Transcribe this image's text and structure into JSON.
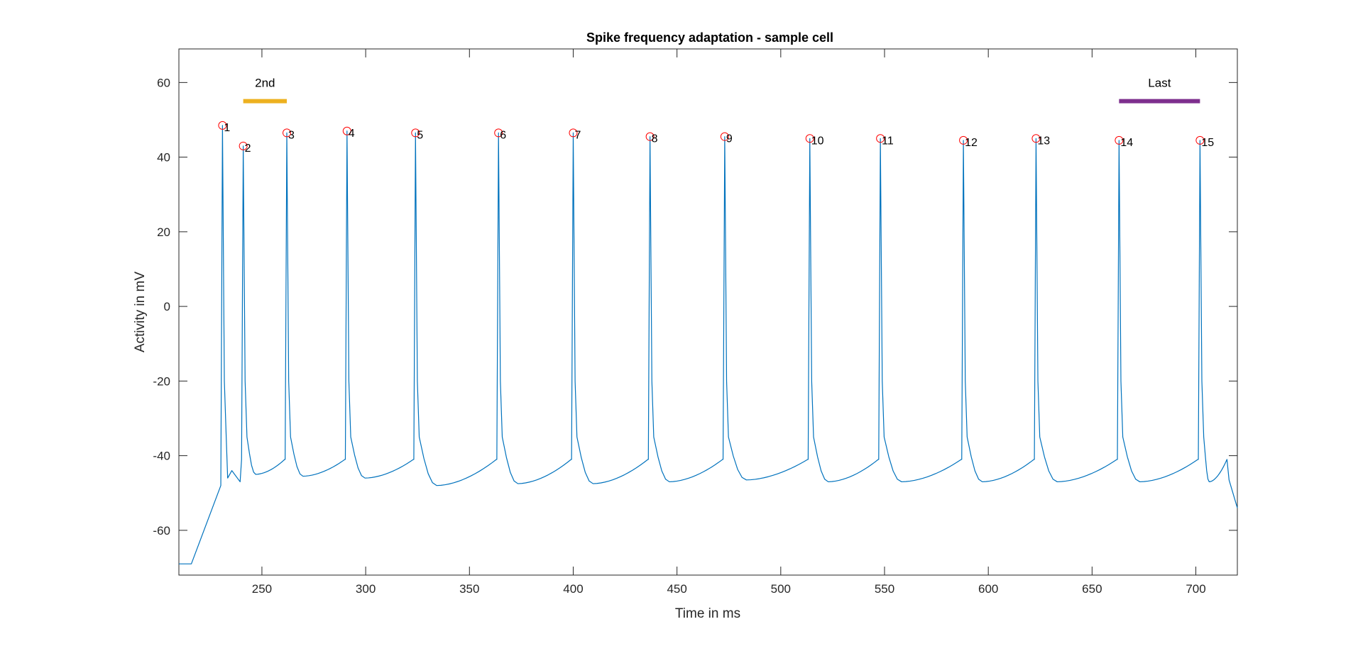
{
  "chart_data": {
    "type": "line",
    "title": "Spike frequency adaptation - sample cell",
    "xlabel": "Time in ms",
    "ylabel": "Activity in mV",
    "xlim": [
      210,
      720
    ],
    "ylim": [
      -72,
      69
    ],
    "xticks": [
      250,
      300,
      350,
      400,
      450,
      500,
      550,
      600,
      650,
      700
    ],
    "yticks": [
      -60,
      -40,
      -20,
      0,
      20,
      40,
      60
    ],
    "grid": false,
    "colors": {
      "trace": "#0072BD",
      "markers": "#FF0000",
      "axes": "#262626"
    },
    "series": [
      {
        "values_description": "membrane potential trace",
        "baseline_start": [
          [
            210,
            -69
          ],
          [
            216,
            -69
          ]
        ],
        "spike_times": [
          231,
          241,
          262,
          291,
          324,
          364,
          400,
          437,
          473,
          514,
          548,
          588,
          623,
          663,
          702
        ],
        "spike_peaks": [
          48.5,
          43,
          46.5,
          47,
          46.5,
          46.5,
          46.5,
          45.5,
          45.5,
          45,
          45,
          44.5,
          45,
          44.5,
          44.5
        ],
        "trough_values": [
          -46,
          -45,
          -45.5,
          -46,
          -48,
          -47.5,
          -47.5,
          -47,
          -46.5,
          -47,
          -47,
          -47,
          -47,
          -47,
          -47
        ],
        "pre_spike_values": [
          -48,
          -41,
          -41,
          -41,
          -41,
          -41,
          -41,
          -41,
          -41,
          -41,
          -41,
          -41,
          -41,
          -41,
          -41
        ],
        "end_values": [
          [
            716,
            -46.5
          ],
          [
            720,
            -54
          ]
        ]
      }
    ],
    "spike_markers": [
      {
        "label": "1",
        "x": 231,
        "y": 48.5
      },
      {
        "label": "2",
        "x": 241,
        "y": 43
      },
      {
        "label": "3",
        "x": 262,
        "y": 46.5
      },
      {
        "label": "4",
        "x": 291,
        "y": 47
      },
      {
        "label": "5",
        "x": 324,
        "y": 46.5
      },
      {
        "label": "6",
        "x": 364,
        "y": 46.5
      },
      {
        "label": "7",
        "x": 400,
        "y": 46.5
      },
      {
        "label": "8",
        "x": 437,
        "y": 45.5
      },
      {
        "label": "9",
        "x": 473,
        "y": 45.5
      },
      {
        "label": "10",
        "x": 514,
        "y": 45
      },
      {
        "label": "11",
        "x": 548,
        "y": 45
      },
      {
        "label": "12",
        "x": 588,
        "y": 44.5
      },
      {
        "label": "13",
        "x": 623,
        "y": 45
      },
      {
        "label": "14",
        "x": 663,
        "y": 44.5
      },
      {
        "label": "15",
        "x": 702,
        "y": 44.5
      }
    ],
    "interval_bars": [
      {
        "label": "2nd",
        "x_start": 241,
        "x_end": 262,
        "y": 55,
        "color": "#EDB120"
      },
      {
        "label": "Last",
        "x_start": 663,
        "x_end": 702,
        "y": 55,
        "color": "#7E2F8E"
      }
    ]
  }
}
